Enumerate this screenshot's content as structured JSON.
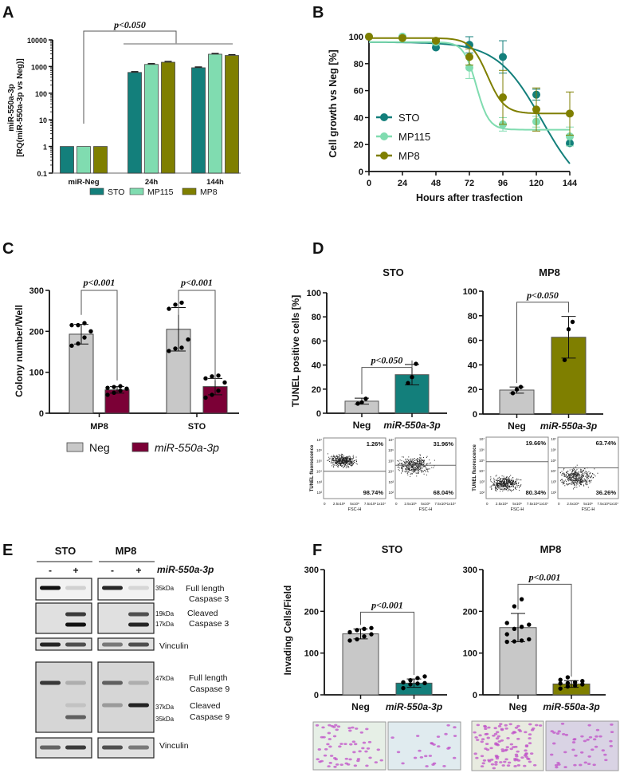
{
  "panel_letters": [
    "A",
    "B",
    "C",
    "D",
    "E",
    "F"
  ],
  "chart_data": [
    {
      "id": "A",
      "type": "bar",
      "yscale": "log",
      "title": "",
      "ylabel": [
        "miR-550a-3p",
        "[RQ(miR-550a-3p vs Neg)]"
      ],
      "xlabel": "",
      "categories": [
        "miR-Neg",
        "24h",
        "144h"
      ],
      "series": [
        {
          "name": "STO",
          "color": "#137f7b",
          "values": [
            1,
            600,
            900
          ]
        },
        {
          "name": "MP115",
          "color": "#80dcb0",
          "values": [
            1,
            1200,
            2900
          ]
        },
        {
          "name": "MP8",
          "color": "#7f7f00",
          "values": [
            1,
            1450,
            2600
          ]
        }
      ],
      "ylim": [
        0.1,
        10000
      ],
      "yticks": [
        "0.1",
        "1",
        "10",
        "100",
        "1000",
        "10000"
      ],
      "annotation": "p<0.050",
      "legend": "bottom"
    },
    {
      "id": "B",
      "type": "line",
      "ylabel": "Cell growth vs Neg [%]",
      "xlabel": "Hours after trasfection",
      "x": [
        0,
        24,
        48,
        72,
        96,
        120,
        144
      ],
      "xticks": [
        "0",
        "24",
        "48",
        "72",
        "96",
        "120",
        "144"
      ],
      "yticks": [
        "0",
        "20",
        "40",
        "60",
        "80",
        "100"
      ],
      "xlim": [
        0,
        144
      ],
      "ylim": [
        0,
        100
      ],
      "series": [
        {
          "name": "STO",
          "color": "#137f7b",
          "values": [
            100,
            100,
            92,
            94,
            85,
            57,
            21
          ],
          "err": [
            0,
            0,
            0,
            6,
            12,
            4,
            0
          ],
          "fit": {
            "top": 96,
            "bottom": -20,
            "x50": 124,
            "k": 16
          }
        },
        {
          "name": "MP115",
          "color": "#80dcb0",
          "values": [
            100,
            100,
            96,
            77,
            35,
            37,
            26
          ],
          "err": [
            0,
            0,
            2,
            8,
            5,
            4,
            7
          ],
          "fit": {
            "top": 96,
            "bottom": 31,
            "x50": 77,
            "k": 4.5
          }
        },
        {
          "name": "MP8",
          "color": "#7f7f00",
          "values": [
            100,
            99,
            97,
            85,
            55,
            46,
            43
          ],
          "err": [
            0,
            0,
            1,
            6,
            20,
            16,
            16
          ],
          "fit": {
            "top": 99,
            "bottom": 43,
            "x50": 85,
            "k": 6
          }
        }
      ],
      "legend": "bottom-left"
    },
    {
      "id": "C",
      "type": "bar",
      "ylabel": "Colony number/Well",
      "categories": [
        "MP8",
        "STO"
      ],
      "series": [
        {
          "name": "Neg",
          "color": "#c8c8c8",
          "values": [
            193,
            205
          ],
          "sd": [
            24,
            53
          ],
          "points": [
            [
              165,
              170,
              185,
              200,
              215,
              215,
              220
            ],
            [
              152,
              158,
              160,
              180,
              255,
              265,
              270
            ]
          ]
        },
        {
          "name": "miR-550a-3p",
          "italic": true,
          "color": "#7b0036",
          "values": [
            57,
            65
          ],
          "sd": [
            8,
            20
          ],
          "points": [
            [
              45,
              50,
              55,
              60,
              62,
              64,
              66
            ],
            [
              38,
              45,
              55,
              75,
              85,
              90,
              92
            ]
          ]
        }
      ],
      "ylim": [
        0,
        300
      ],
      "yticks": [
        "0",
        "100",
        "200",
        "300"
      ],
      "annotations": [
        "p<0.001",
        "p<0.001"
      ],
      "legend": "bottom"
    },
    {
      "id": "D-STO",
      "type": "bar",
      "title": "STO",
      "ylabel": "TUNEL positive cells [%]",
      "categories": [
        "Neg",
        "miR-550a-3p"
      ],
      "values": [
        10,
        32
      ],
      "sd": [
        2.5,
        8.5
      ],
      "colors": [
        "#c8c8c8",
        "#137f7b"
      ],
      "points": [
        [
          8,
          9,
          12
        ],
        [
          25,
          30,
          41
        ]
      ],
      "ylim": [
        0,
        100
      ],
      "yticks": [
        "0",
        "20",
        "40",
        "60",
        "80",
        "100"
      ],
      "annotation": "p<0.050"
    },
    {
      "id": "D-MP8",
      "type": "bar",
      "title": "MP8",
      "categories": [
        "Neg",
        "miR-550a-3p"
      ],
      "values": [
        19.5,
        62.5
      ],
      "sd": [
        2.5,
        17
      ],
      "colors": [
        "#c8c8c8",
        "#7f7f00"
      ],
      "points": [
        [
          17,
          20,
          22
        ],
        [
          44,
          69,
          75
        ]
      ],
      "ylim": [
        0,
        100
      ],
      "yticks": [
        "0",
        "20",
        "40",
        "60",
        "80",
        "100"
      ],
      "annotation": "p<0.050"
    },
    {
      "id": "F-STO",
      "type": "bar",
      "title": "STO",
      "ylabel": "Invading Cells/Field",
      "categories": [
        "Neg",
        "miR-550a-3p"
      ],
      "values": [
        146,
        28
      ],
      "sd": [
        12,
        10
      ],
      "colors": [
        "#c8c8c8",
        "#137f7b"
      ],
      "points": [
        [
          130,
          133,
          140,
          145,
          150,
          155,
          158,
          160
        ],
        [
          16,
          25,
          27,
          28,
          30,
          35,
          40,
          44
        ]
      ],
      "ylim": [
        0,
        300
      ],
      "yticks": [
        "0",
        "100",
        "200",
        "300"
      ],
      "annotation": "p<0.001"
    },
    {
      "id": "F-MP8",
      "type": "bar",
      "title": "MP8",
      "categories": [
        "Neg",
        "miR-550a-3p"
      ],
      "values": [
        161,
        26
      ],
      "sd": [
        34,
        8
      ],
      "colors": [
        "#c8c8c8",
        "#7f7f00"
      ],
      "points": [
        [
          127,
          128,
          130,
          133,
          145,
          158,
          163,
          168,
          172,
          212,
          229
        ],
        [
          15,
          20,
          22,
          25,
          27,
          28,
          30,
          33,
          36,
          42
        ]
      ],
      "ylim": [
        0,
        300
      ],
      "yticks": [
        "0",
        "100",
        "200",
        "300"
      ],
      "annotation": "p<0.001"
    }
  ],
  "flow_cytometry": {
    "ylabel": "TUNEL fluorescence",
    "xlabel": "FSC-H",
    "yticks": [
      "10²",
      "10³",
      "10⁴",
      "10⁵",
      "10⁶",
      "10⁷"
    ],
    "xticks": [
      "0",
      "2.5x10⁶",
      "5x10⁶",
      "7.5x10⁶",
      "1x10⁷"
    ],
    "plots": [
      {
        "top": "1.26%",
        "bottom": "98.74%"
      },
      {
        "top": "31.96%",
        "bottom": "68.04%"
      },
      {
        "top": "19.66%",
        "bottom": "80.34%"
      },
      {
        "top": "63.74%",
        "bottom": "36.26%"
      }
    ]
  },
  "western_blot": {
    "cell_lines": [
      "STO",
      "MP8"
    ],
    "lanes": [
      "-",
      "+",
      "-",
      "+"
    ],
    "treatment": "miR-550a-3p",
    "rows": [
      {
        "kda": [
          "35kDa"
        ],
        "label": [
          "Full length",
          "Caspase 3"
        ]
      },
      {
        "kda": [
          "19kDa",
          "17kDa"
        ],
        "label": [
          "Cleaved",
          "Caspase 3"
        ]
      },
      {
        "kda": [],
        "label": [
          "Vinculin"
        ]
      },
      {
        "kda": [
          "47kDa",
          "37kDa",
          "35kDa"
        ],
        "label": [
          "Full length",
          "Caspase 9",
          "Cleaved",
          "Caspase 9"
        ]
      },
      {
        "kda": [],
        "label": [
          "Vinculin"
        ]
      }
    ]
  }
}
